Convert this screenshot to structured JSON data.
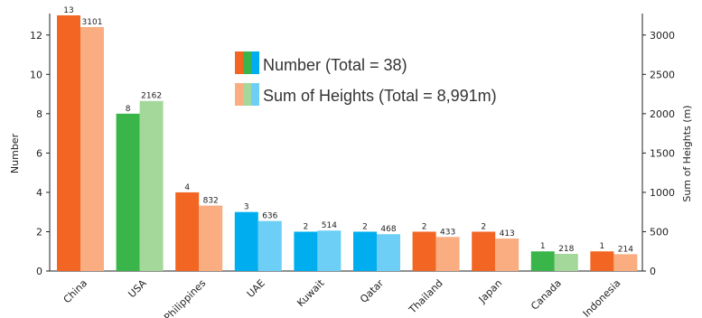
{
  "chart_data": {
    "type": "bar",
    "categories": [
      "China",
      "USA",
      "Philippines",
      "UAE",
      "Kuwait",
      "Qatar",
      "Thailand",
      "Japan",
      "Canada",
      "Indonesia"
    ],
    "series": [
      {
        "name": "Number (Total = 38)",
        "values": [
          13,
          8,
          4,
          3,
          2,
          2,
          2,
          2,
          1,
          1
        ],
        "axis": "left"
      },
      {
        "name": "Sum of Heights (Total = 8,991m)",
        "values": [
          3101,
          2162,
          832,
          636,
          514,
          468,
          433,
          413,
          218,
          214
        ],
        "axis": "right"
      }
    ],
    "ylabel_left": "Number",
    "ylabel_right": "Sum of Heights (m)",
    "ylim_left": [
      0,
      13
    ],
    "ylim_right": [
      0,
      3250
    ],
    "yticks_left": [
      "0",
      "2",
      "4",
      "6",
      "8",
      "10",
      "12"
    ],
    "yticks_right": [
      "0",
      "500",
      "1000",
      "1500",
      "2000",
      "2500",
      "3000"
    ],
    "grid": false,
    "legend_position": "top-center",
    "region_colors": {
      "China": [
        "#f26522",
        "#f9ad81"
      ],
      "USA": [
        "#39b54a",
        "#a3d89a"
      ],
      "Philippines": [
        "#f26522",
        "#f9ad81"
      ],
      "UAE": [
        "#00aeef",
        "#6dcff6"
      ],
      "Kuwait": [
        "#00aeef",
        "#6dcff6"
      ],
      "Qatar": [
        "#00aeef",
        "#6dcff6"
      ],
      "Thailand": [
        "#f26522",
        "#f9ad81"
      ],
      "Japan": [
        "#f26522",
        "#f9ad81"
      ],
      "Canada": [
        "#39b54a",
        "#a3d89a"
      ],
      "Indonesia": [
        "#f26522",
        "#f9ad81"
      ]
    },
    "legend_swatch_colors": {
      "dark": [
        "#f26522",
        "#39b54a",
        "#00aeef"
      ],
      "light": [
        "#f9ad81",
        "#a3d89a",
        "#6dcff6"
      ]
    }
  }
}
